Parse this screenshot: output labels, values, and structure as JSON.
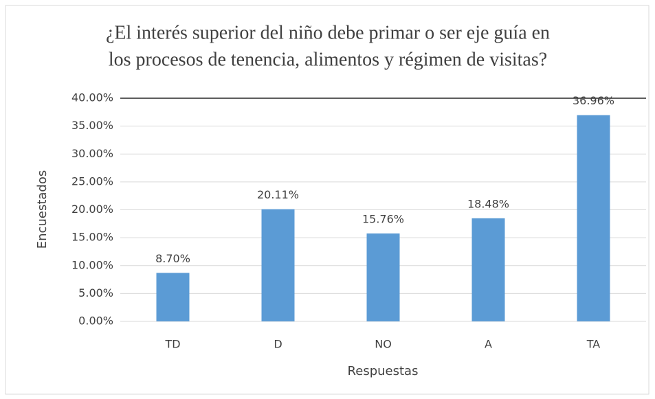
{
  "chart_data": {
    "type": "bar",
    "title_lines": [
      "¿El interés superior del niño debe primar o ser eje guía en",
      "los procesos de tenencia, alimentos y régimen de visitas?"
    ],
    "x_label": "Respuestas",
    "y_label": "Encuestados",
    "categories": [
      "TD",
      "D",
      "NO",
      "A",
      "TA"
    ],
    "values": [
      8.7,
      20.11,
      15.76,
      18.48,
      36.96
    ],
    "value_labels": [
      "8.70%",
      "20.11%",
      "15.76%",
      "18.48%",
      "36.96%"
    ],
    "color": "#5b9bd5",
    "ylim": [
      0,
      40
    ],
    "yticks": [
      {
        "value": 0,
        "label": "0.00%"
      },
      {
        "value": 5,
        "label": "5.00%"
      },
      {
        "value": 10,
        "label": "10.00%"
      },
      {
        "value": 15,
        "label": "15.00%"
      },
      {
        "value": 20,
        "label": "20.00%"
      },
      {
        "value": 25,
        "label": "25.00%"
      },
      {
        "value": 30,
        "label": "30.00%"
      },
      {
        "value": 35,
        "label": "35.00%"
      },
      {
        "value": 40,
        "label": "40.00%"
      }
    ],
    "grid": true
  }
}
